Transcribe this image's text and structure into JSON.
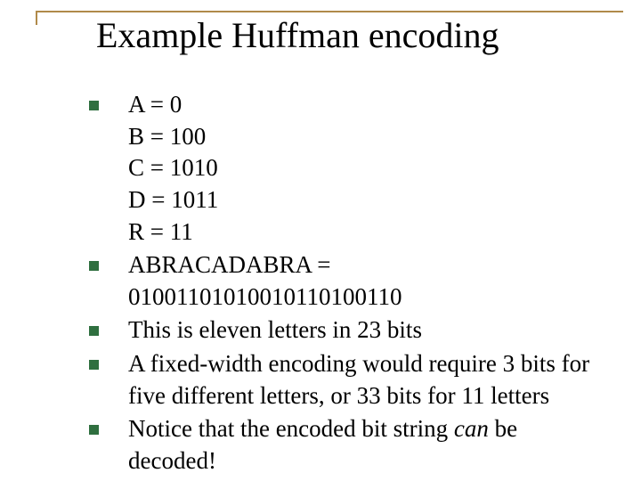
{
  "colors": {
    "rule": "#b08a4a",
    "bullet": "#2f6f3f",
    "text": "#000000",
    "background": "#ffffff"
  },
  "title": "Example Huffman encoding",
  "code_lines": {
    "l0": "A = 0",
    "l1": "B = 100",
    "l2": "C = 1010",
    "l3": "D = 1011",
    "l4": "R = 11"
  },
  "items": {
    "abracadabra": "ABRACADABRA = 01001101010010110100110",
    "eleven": "This is eleven letters in 23 bits",
    "fixed": "A fixed-width encoding would require 3 bits for five different letters, or 33 bits for 11 letters",
    "notice_pre": "Notice that the encoded bit string ",
    "notice_em": "can",
    "notice_post": " be decoded!"
  }
}
